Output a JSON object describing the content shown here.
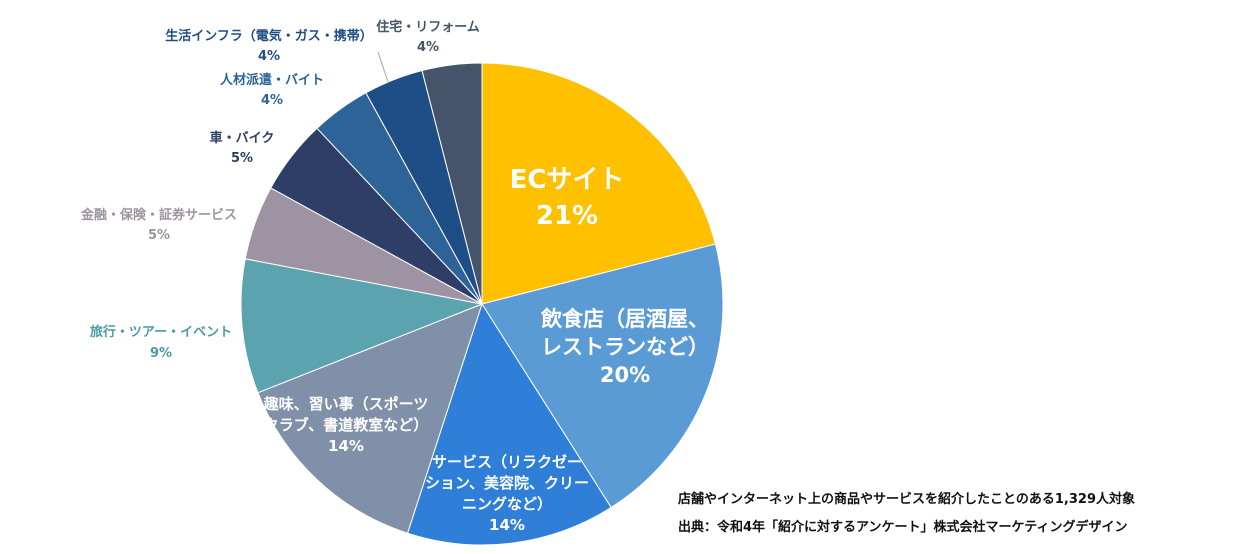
{
  "chart_data": {
    "type": "pie",
    "start": "12 o'clock",
    "direction": "clockwise",
    "slices": [
      {
        "label": "ECサイト",
        "value": 21,
        "pct": "21%",
        "color": "#FFC000"
      },
      {
        "label": "飲食店（居酒屋、レストランなど）",
        "value": 20,
        "pct": "20%",
        "color": "#5B9BD5"
      },
      {
        "label": "サービス（リラクゼーション、美容院、クリーニングなど）",
        "value": 14,
        "pct": "14%",
        "color": "#2F7ED8"
      },
      {
        "label": "趣味、習い事（スポーツクラブ、書道教室など）",
        "value": 14,
        "pct": "14%",
        "color": "#8090A8"
      },
      {
        "label": "旅行・ツアー・イベント",
        "value": 9,
        "pct": "9%",
        "color": "#5BA3AE"
      },
      {
        "label": "金融・保険・証券サービス",
        "value": 5,
        "pct": "5%",
        "color": "#9E93A3"
      },
      {
        "label": "車・バイク",
        "value": 5,
        "pct": "5%",
        "color": "#2E3E66"
      },
      {
        "label": "人材派遣・バイト",
        "value": 4,
        "pct": "4%",
        "color": "#2D6396"
      },
      {
        "label": "生活インフラ（電気・ガス・携帯）",
        "value": 4,
        "pct": "4%",
        "color": "#1F4E86"
      },
      {
        "label": "住宅・リフォーム",
        "value": 4,
        "pct": "4%",
        "color": "#44546A"
      }
    ],
    "label_lines": [
      [
        "ECサイト",
        "21%"
      ],
      [
        "飲食店（居酒屋、",
        "レストランなど）",
        "20%"
      ],
      [
        "サービス（リラクゼー",
        "ション、美容院、クリー",
        "ニングなど）",
        "14%"
      ],
      [
        "趣味、習い事（スポーツ",
        "クラブ、書道教室など）",
        "14%"
      ],
      [
        "旅行・ツアー・イベント",
        "9%"
      ],
      [
        "金融・保険・証券サービス",
        "5%"
      ],
      [
        "車・バイク",
        "5%"
      ],
      [
        "人材派遣・バイト",
        "4%"
      ],
      [
        "生活インフラ（電気・ガス・携帯）",
        "4%"
      ],
      [
        "住宅・リフォーム",
        "4%"
      ]
    ]
  },
  "notes": {
    "survey": "店舗やインターネット上の商品やサービスを紹介したことのある1,329人対象",
    "source": "出典：令和4年「紹介に対するアンケート」株式会社マーケティングデザイン"
  }
}
